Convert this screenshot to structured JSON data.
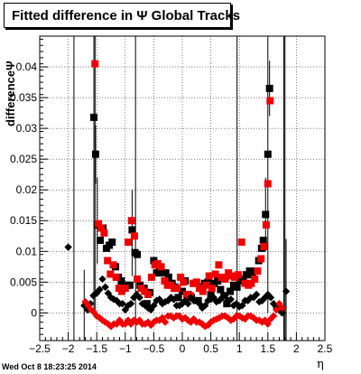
{
  "title": "Fitted difference in  Ψ   Global Tracks",
  "footer": {
    "datestamp": "Wed Oct  8 18:23:25 2014"
  },
  "colors": {
    "series_black": "#000000",
    "series_red": "#ee0000",
    "frame": "#000000"
  },
  "chart_data": {
    "type": "scatter",
    "title": "Fitted difference in  Ψ   Global Tracks",
    "xlabel": "η",
    "ylabel": "differenceΨ",
    "xlim": [
      -2.5,
      2.5
    ],
    "ylim": [
      -0.0045,
      0.045
    ],
    "grid": true,
    "x_ticks": [
      -2.5,
      -2,
      -1.5,
      -1,
      -0.5,
      0,
      0.5,
      1,
      1.5,
      2,
      2.5
    ],
    "x_tick_labels": [
      "−2.5",
      "−2",
      "−1.5",
      "−1",
      "−0.5",
      "0",
      "0.5",
      "1",
      "1.5",
      "2",
      "2.5"
    ],
    "y_ticks": [
      0,
      0.005,
      0.01,
      0.015,
      0.02,
      0.025,
      0.03,
      0.035,
      0.04
    ],
    "y_tick_labels": [
      "0",
      "0.005",
      "0.01",
      "0.015",
      "0.02",
      "0.025",
      "0.03",
      "0.035",
      "0.04"
    ],
    "series": [
      {
        "marker": "square",
        "color": "black",
        "points": [
          [
            -1.55,
            0.0318
          ],
          [
            -1.52,
            0.0258
          ],
          [
            -1.49,
            0.0143
          ],
          [
            -1.44,
            0.0118
          ],
          [
            -1.39,
            0.0138
          ],
          [
            -1.33,
            0.0105
          ],
          [
            -1.28,
            0.011
          ],
          [
            -1.23,
            0.0115
          ],
          [
            -1.17,
            0.0075
          ],
          [
            -1.12,
            0.0058
          ],
          [
            -1.07,
            0.0052
          ],
          [
            -1.02,
            0.0045
          ],
          [
            -0.97,
            0.0045
          ],
          [
            -0.92,
            0.0045
          ],
          [
            -0.88,
            0.0135
          ],
          [
            -0.83,
            0.0098
          ],
          [
            -0.79,
            0.0095
          ],
          [
            -0.74,
            0.0045
          ],
          [
            -0.67,
            0.004
          ],
          [
            -0.62,
            0.0015
          ],
          [
            -0.57,
            0.0033
          ],
          [
            -0.5,
            0.0085
          ],
          [
            -0.45,
            0.0065
          ],
          [
            -0.4,
            0.0073
          ],
          [
            -0.34,
            0.0065
          ],
          [
            -0.29,
            0.0065
          ],
          [
            -0.24,
            0.0058
          ],
          [
            -0.18,
            0.0048
          ],
          [
            -0.13,
            0.0042
          ],
          [
            -0.07,
            0.0025
          ],
          [
            0.0,
            0.0035
          ],
          [
            0.05,
            0.0052
          ],
          [
            0.1,
            0.003
          ],
          [
            0.16,
            0.0025
          ],
          [
            0.22,
            0.0048
          ],
          [
            0.28,
            0.002
          ],
          [
            0.34,
            0.0042
          ],
          [
            0.39,
            0.0048
          ],
          [
            0.45,
            0.005
          ],
          [
            0.5,
            0.003
          ],
          [
            0.56,
            0.0048
          ],
          [
            0.62,
            0.0052
          ],
          [
            0.67,
            0.0038
          ],
          [
            0.73,
            0.0028
          ],
          [
            0.78,
            0.0015
          ],
          [
            0.84,
            0.0035
          ],
          [
            0.9,
            0.0045
          ],
          [
            0.96,
            0.0042
          ],
          [
            1.01,
            0.0052
          ],
          [
            1.07,
            0.0055
          ],
          [
            1.12,
            0.0062
          ],
          [
            1.18,
            0.0068
          ],
          [
            1.23,
            0.0062
          ],
          [
            1.29,
            0.0068
          ],
          [
            1.34,
            0.0085
          ],
          [
            1.39,
            0.0105
          ],
          [
            1.42,
            0.0118
          ],
          [
            1.46,
            0.016
          ],
          [
            1.5,
            0.0258
          ],
          [
            1.53,
            0.0365
          ]
        ]
      },
      {
        "marker": "square",
        "color": "red",
        "points": [
          [
            -1.53,
            0.0405
          ],
          [
            -1.47,
            0.0145
          ],
          [
            -1.42,
            0.0138
          ],
          [
            -1.37,
            0.013
          ],
          [
            -1.31,
            0.0085
          ],
          [
            -1.26,
            0.0063
          ],
          [
            -1.21,
            0.0078
          ],
          [
            -1.16,
            0.0058
          ],
          [
            -1.11,
            0.004
          ],
          [
            -1.06,
            0.0035
          ],
          [
            -1.0,
            0.004
          ],
          [
            -0.95,
            0.0115
          ],
          [
            -0.89,
            0.015
          ],
          [
            -0.84,
            0.0125
          ],
          [
            -0.79,
            0.0055
          ],
          [
            -0.72,
            0.004
          ],
          [
            -0.66,
            0.0035
          ],
          [
            -0.6,
            0.003
          ],
          [
            -0.54,
            0.0058
          ],
          [
            -0.48,
            0.0078
          ],
          [
            -0.43,
            0.008
          ],
          [
            -0.37,
            0.0075
          ],
          [
            -0.31,
            0.0052
          ],
          [
            -0.26,
            0.0045
          ],
          [
            -0.2,
            0.0045
          ],
          [
            -0.14,
            0.004
          ],
          [
            -0.09,
            0.004
          ],
          [
            -0.03,
            0.0058
          ],
          [
            0.02,
            0.005
          ],
          [
            0.08,
            0.003
          ],
          [
            0.14,
            0.0028
          ],
          [
            0.19,
            0.0048
          ],
          [
            0.25,
            0.005
          ],
          [
            0.3,
            0.004
          ],
          [
            0.36,
            0.0035
          ],
          [
            0.42,
            0.0045
          ],
          [
            0.47,
            0.006
          ],
          [
            0.52,
            0.004
          ],
          [
            0.58,
            0.0063
          ],
          [
            0.64,
            0.0078
          ],
          [
            0.69,
            0.0058
          ],
          [
            0.75,
            0.0055
          ],
          [
            0.81,
            0.0065
          ],
          [
            0.86,
            0.006
          ],
          [
            0.92,
            0.0058
          ],
          [
            0.98,
            0.0062
          ],
          [
            1.04,
            0.0115
          ],
          [
            1.1,
            0.0048
          ],
          [
            1.16,
            0.0045
          ],
          [
            1.21,
            0.0048
          ],
          [
            1.27,
            0.0055
          ],
          [
            1.32,
            0.0068
          ],
          [
            1.38,
            0.0088
          ],
          [
            1.43,
            0.0108
          ],
          [
            1.47,
            0.0143
          ],
          [
            1.5,
            0.021
          ],
          [
            1.54,
            0.0345
          ]
        ]
      },
      {
        "marker": "diamond",
        "color": "black",
        "points": [
          [
            -2.0,
            0.0107
          ],
          [
            -1.72,
            0.0012
          ],
          [
            -1.66,
            0.0005
          ],
          [
            -1.61,
            0.0015
          ],
          [
            -1.56,
            0.0028
          ],
          [
            -1.5,
            0.0032
          ],
          [
            -1.45,
            0.0038
          ],
          [
            -1.4,
            0.0055
          ],
          [
            -1.35,
            0.0042
          ],
          [
            -1.3,
            0.0032
          ],
          [
            -1.25,
            0.0025
          ],
          [
            -1.2,
            0.0022
          ],
          [
            -1.15,
            0.002
          ],
          [
            -1.1,
            0.0015
          ],
          [
            -1.05,
            0.0015
          ],
          [
            -1.0,
            0.0005
          ],
          [
            -0.95,
            0.0012
          ],
          [
            -0.9,
            0.0015
          ],
          [
            -0.85,
            0.0025
          ],
          [
            -0.8,
            0.003
          ],
          [
            -0.75,
            0.0025
          ],
          [
            -0.7,
            0.0015
          ],
          [
            -0.65,
            0.0012
          ],
          [
            -0.6,
            0.0008
          ],
          [
            -0.55,
            0.0005
          ],
          [
            -0.5,
            0.0012
          ],
          [
            -0.45,
            0.002
          ],
          [
            -0.4,
            0.0022
          ],
          [
            -0.35,
            0.0015
          ],
          [
            -0.3,
            0.0018
          ],
          [
            -0.25,
            0.002
          ],
          [
            -0.2,
            0.0025
          ],
          [
            -0.15,
            0.0022
          ],
          [
            -0.1,
            0.0012
          ],
          [
            -0.05,
            0.0012
          ],
          [
            0.0,
            0.0015
          ],
          [
            0.05,
            0.002
          ],
          [
            0.1,
            0.0015
          ],
          [
            0.15,
            0.0025
          ],
          [
            0.2,
            0.002
          ],
          [
            0.25,
            0.002
          ],
          [
            0.3,
            0.0015
          ],
          [
            0.35,
            0.0008
          ],
          [
            0.4,
            0.0012
          ],
          [
            0.45,
            0.002
          ],
          [
            0.5,
            0.0022
          ],
          [
            0.55,
            0.0025
          ],
          [
            0.6,
            0.0018
          ],
          [
            0.65,
            0.002
          ],
          [
            0.7,
            0.0025
          ],
          [
            0.75,
            0.0028
          ],
          [
            0.8,
            0.002
          ],
          [
            0.85,
            0.0022
          ],
          [
            0.9,
            0.0012
          ],
          [
            0.95,
            0.0015
          ],
          [
            1.0,
            0.001
          ],
          [
            1.05,
            0.0012
          ],
          [
            1.1,
            0.002
          ],
          [
            1.15,
            0.002
          ],
          [
            1.2,
            0.0025
          ],
          [
            1.25,
            0.0025
          ],
          [
            1.3,
            0.003
          ],
          [
            1.35,
            0.0018
          ],
          [
            1.4,
            0.002
          ],
          [
            1.45,
            0.0025
          ],
          [
            1.5,
            0.003
          ],
          [
            1.55,
            0.0025
          ],
          [
            1.6,
            0.0015
          ],
          [
            1.65,
            0.0008
          ],
          [
            1.7,
            0.0005
          ],
          [
            1.75,
            0.0
          ],
          [
            1.82,
            0.0035
          ]
        ]
      },
      {
        "marker": "diamond",
        "color": "red",
        "points": [
          [
            -1.7,
            0.0018
          ],
          [
            -1.65,
            0.0012
          ],
          [
            -1.6,
            0.0005
          ],
          [
            -1.55,
            0.0001
          ],
          [
            -1.5,
            -0.0005
          ],
          [
            -1.45,
            -0.0008
          ],
          [
            -1.4,
            -0.0012
          ],
          [
            -1.35,
            -0.0015
          ],
          [
            -1.3,
            -0.0018
          ],
          [
            -1.25,
            -0.0022
          ],
          [
            -1.2,
            -0.0018
          ],
          [
            -1.15,
            -0.0018
          ],
          [
            -1.1,
            -0.0012
          ],
          [
            -1.05,
            -0.0018
          ],
          [
            -1.0,
            -0.0018
          ],
          [
            -0.95,
            -0.0012
          ],
          [
            -0.9,
            -0.0018
          ],
          [
            -0.85,
            -0.0012
          ],
          [
            -0.8,
            -0.0015
          ],
          [
            -0.75,
            -0.0012
          ],
          [
            -0.7,
            -0.0018
          ],
          [
            -0.65,
            -0.0018
          ],
          [
            -0.6,
            -0.0015
          ],
          [
            -0.55,
            -0.002
          ],
          [
            -0.5,
            -0.0015
          ],
          [
            -0.45,
            -0.0012
          ],
          [
            -0.4,
            -0.0012
          ],
          [
            -0.35,
            -0.0008
          ],
          [
            -0.3,
            -0.0015
          ],
          [
            -0.25,
            -0.0005
          ],
          [
            -0.2,
            -0.0005
          ],
          [
            -0.15,
            -0.0008
          ],
          [
            -0.1,
            -0.0005
          ],
          [
            -0.05,
            -0.0005
          ],
          [
            0.0,
            -0.001
          ],
          [
            0.05,
            -0.0008
          ],
          [
            0.1,
            -0.0012
          ],
          [
            0.15,
            -0.0015
          ],
          [
            0.2,
            -0.001
          ],
          [
            0.25,
            -0.0015
          ],
          [
            0.3,
            -0.0015
          ],
          [
            0.35,
            -0.0018
          ],
          [
            0.4,
            -0.0022
          ],
          [
            0.45,
            -0.002
          ],
          [
            0.5,
            -0.0015
          ],
          [
            0.55,
            -0.0012
          ],
          [
            0.6,
            -0.001
          ],
          [
            0.65,
            -0.0008
          ],
          [
            0.7,
            -0.0005
          ],
          [
            0.75,
            -0.0005
          ],
          [
            0.8,
            -0.0008
          ],
          [
            0.85,
            -0.0012
          ],
          [
            0.9,
            -0.001
          ],
          [
            0.95,
            -0.0005
          ],
          [
            1.0,
            -0.0005
          ],
          [
            1.05,
            -0.0008
          ],
          [
            1.1,
            -0.001
          ],
          [
            1.15,
            -0.0005
          ],
          [
            1.2,
            -0.0005
          ],
          [
            1.25,
            -0.0008
          ],
          [
            1.3,
            -0.0012
          ],
          [
            1.35,
            -0.0012
          ],
          [
            1.4,
            -0.0015
          ],
          [
            1.45,
            -0.0012
          ],
          [
            1.5,
            -0.0018
          ],
          [
            1.55,
            -0.001
          ],
          [
            1.6,
            -0.0005
          ],
          [
            1.65,
            0.0005
          ],
          [
            1.7,
            0.0015
          ],
          [
            1.75,
            0.0008
          ]
        ]
      }
    ],
    "error_bars": [
      {
        "x": -1.55,
        "y": 0.0318,
        "low": 0.0,
        "high": 0.045
      },
      {
        "x": -1.52,
        "y": 0.0258,
        "low": 0.021,
        "high": 0.0305
      },
      {
        "x": -1.49,
        "y": 0.0143,
        "low": 0.008,
        "high": 0.022
      },
      {
        "x": -1.53,
        "y": 0.0405,
        "low": 0.0,
        "high": 0.045
      },
      {
        "x": 1.5,
        "y": 0.0258,
        "low": 0.0,
        "high": 0.045
      },
      {
        "x": 1.53,
        "y": 0.0365,
        "low": 0.032,
        "high": 0.041
      },
      {
        "x": 1.46,
        "y": 0.016,
        "low": 0.01,
        "high": 0.022
      },
      {
        "x": -0.88,
        "y": 0.0135,
        "low": 0.006,
        "high": 0.02
      },
      {
        "x": -1.72,
        "y": 0.0012,
        "low": -0.0045,
        "high": 0.007
      },
      {
        "x": 1.82,
        "y": 0.0035,
        "low": -0.0045,
        "high": 0.012
      }
    ],
    "vertical_lines": [
      {
        "x": -1.9,
        "low": -0.0045,
        "high": 0.045
      },
      {
        "x": -0.82,
        "low": -0.0045,
        "high": 0.045
      },
      {
        "x": 0.96,
        "low": -0.0045,
        "high": 0.045
      },
      {
        "x": 1.78,
        "low": -0.0045,
        "high": 0.045
      },
      {
        "x": 1.8,
        "low": -0.0045,
        "high": 0.045
      }
    ]
  }
}
